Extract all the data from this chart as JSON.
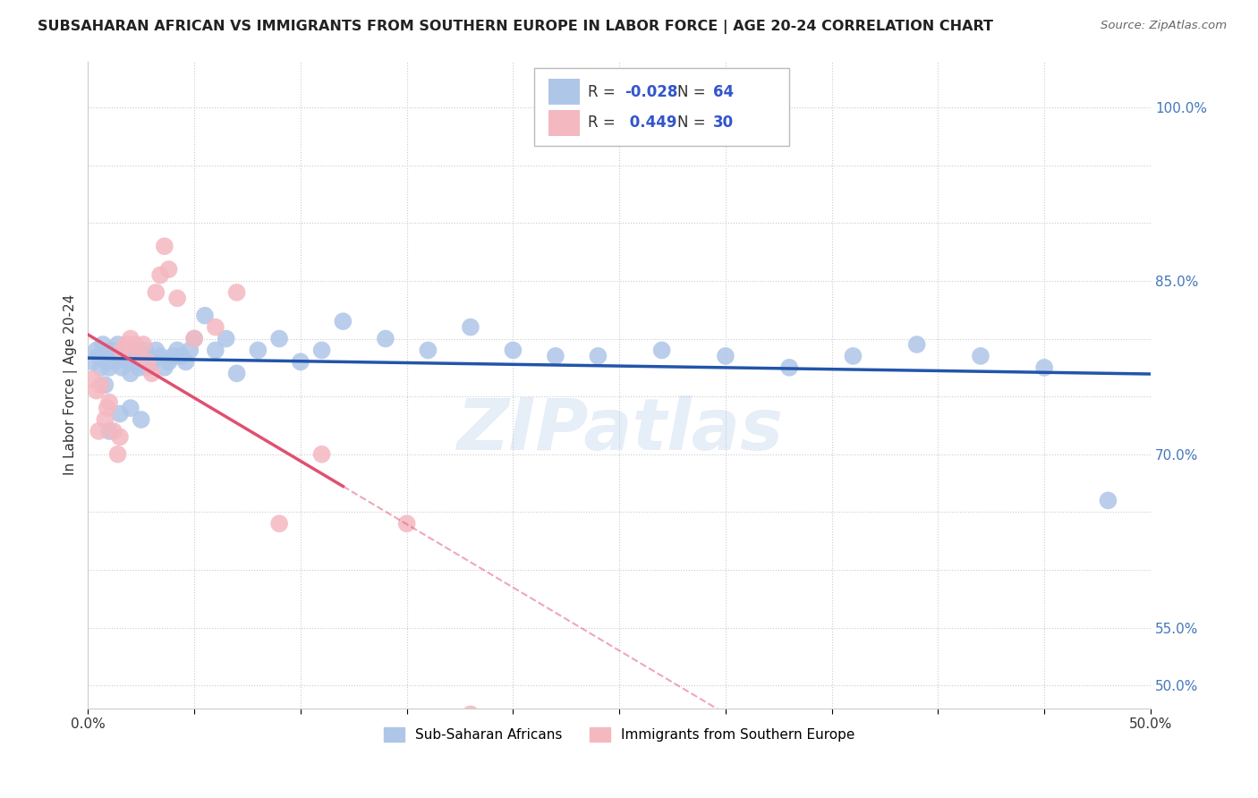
{
  "title": "SUBSAHARAN AFRICAN VS IMMIGRANTS FROM SOUTHERN EUROPE IN LABOR FORCE | AGE 20-24 CORRELATION CHART",
  "source": "Source: ZipAtlas.com",
  "ylabel": "In Labor Force | Age 20-24",
  "xlim": [
    0.0,
    0.5
  ],
  "ylim": [
    0.48,
    1.04
  ],
  "blue_R": -0.028,
  "blue_N": 64,
  "pink_R": 0.449,
  "pink_N": 30,
  "blue_color": "#aec6e8",
  "pink_color": "#f4b8c1",
  "blue_line_color": "#2255aa",
  "pink_line_color": "#e05070",
  "background_color": "#ffffff",
  "watermark": "ZIPatlas",
  "legend_label_blue": "Sub-Saharan Africans",
  "legend_label_pink": "Immigrants from Southern Europe",
  "blue_x": [
    0.002,
    0.004,
    0.005,
    0.006,
    0.007,
    0.008,
    0.009,
    0.01,
    0.011,
    0.012,
    0.013,
    0.014,
    0.015,
    0.016,
    0.017,
    0.018,
    0.019,
    0.02,
    0.021,
    0.022,
    0.023,
    0.024,
    0.025,
    0.026,
    0.027,
    0.028,
    0.03,
    0.032,
    0.034,
    0.036,
    0.038,
    0.04,
    0.042,
    0.044,
    0.046,
    0.048,
    0.05,
    0.055,
    0.06,
    0.065,
    0.07,
    0.08,
    0.09,
    0.1,
    0.11,
    0.12,
    0.14,
    0.16,
    0.18,
    0.2,
    0.22,
    0.24,
    0.27,
    0.3,
    0.33,
    0.36,
    0.39,
    0.42,
    0.45,
    0.48,
    0.01,
    0.015,
    0.02,
    0.025
  ],
  "blue_y": [
    0.78,
    0.79,
    0.785,
    0.775,
    0.795,
    0.76,
    0.78,
    0.775,
    0.79,
    0.785,
    0.78,
    0.795,
    0.785,
    0.775,
    0.79,
    0.785,
    0.78,
    0.77,
    0.785,
    0.79,
    0.785,
    0.775,
    0.78,
    0.785,
    0.79,
    0.775,
    0.78,
    0.79,
    0.785,
    0.775,
    0.78,
    0.785,
    0.79,
    0.785,
    0.78,
    0.79,
    0.8,
    0.82,
    0.79,
    0.8,
    0.77,
    0.79,
    0.8,
    0.78,
    0.79,
    0.815,
    0.8,
    0.79,
    0.81,
    0.79,
    0.785,
    0.785,
    0.79,
    0.785,
    0.775,
    0.785,
    0.795,
    0.785,
    0.775,
    0.66,
    0.72,
    0.735,
    0.74,
    0.73
  ],
  "pink_x": [
    0.002,
    0.004,
    0.005,
    0.006,
    0.008,
    0.009,
    0.01,
    0.012,
    0.014,
    0.015,
    0.016,
    0.018,
    0.02,
    0.022,
    0.024,
    0.026,
    0.028,
    0.03,
    0.032,
    0.034,
    0.036,
    0.038,
    0.042,
    0.05,
    0.06,
    0.07,
    0.09,
    0.11,
    0.15,
    0.18
  ],
  "pink_y": [
    0.765,
    0.755,
    0.72,
    0.76,
    0.73,
    0.74,
    0.745,
    0.72,
    0.7,
    0.715,
    0.79,
    0.795,
    0.8,
    0.795,
    0.785,
    0.795,
    0.78,
    0.77,
    0.84,
    0.855,
    0.88,
    0.86,
    0.835,
    0.8,
    0.81,
    0.84,
    0.64,
    0.7,
    0.64,
    0.475
  ]
}
